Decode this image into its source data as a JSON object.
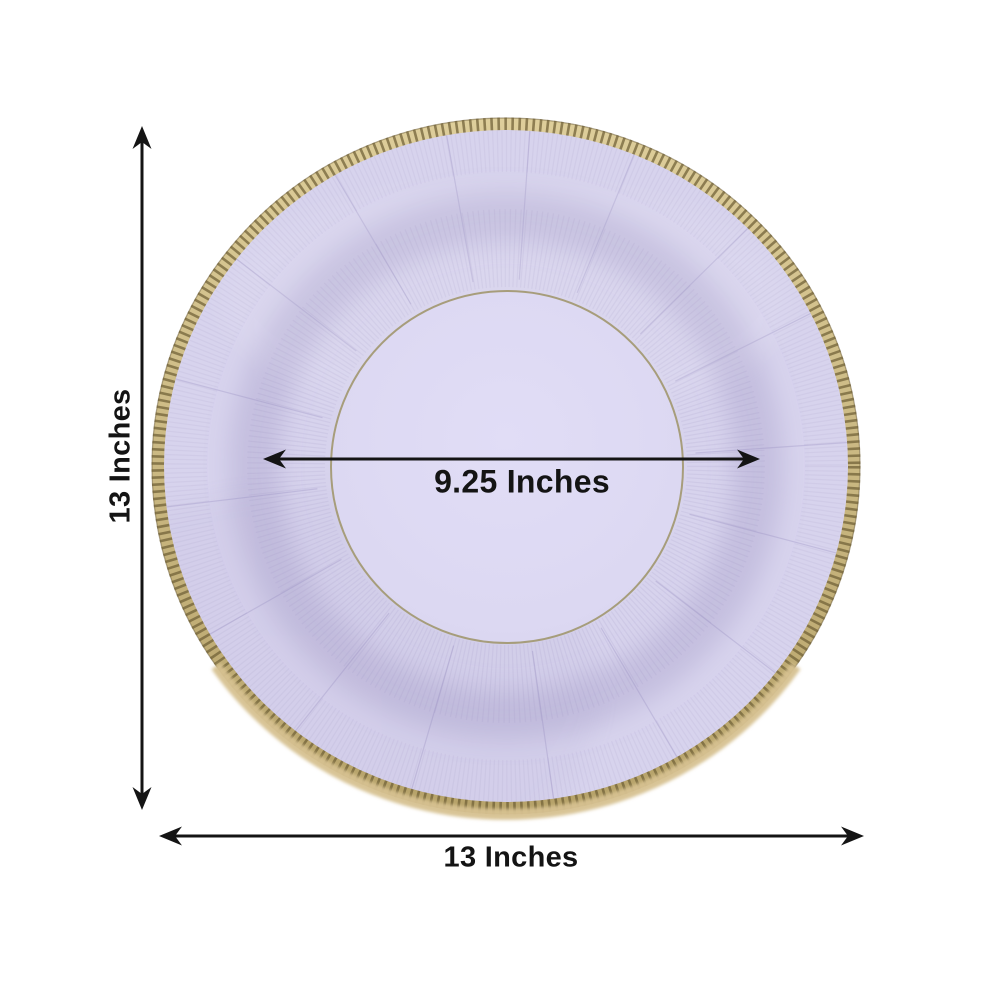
{
  "annotations": {
    "height_label": "13 Inches",
    "width_label": "13 Inches",
    "inner_diameter_label": "9.25 Inches"
  },
  "colors": {
    "background": "#ffffff",
    "arrow": "#141414",
    "label_text": "#141414",
    "plate_lavender": "#d7d3ed",
    "plate_well_center": "#e1ddf6",
    "plate_well_mid": "#dcd8f2",
    "plate_well_edge": "#d6d2ec",
    "plate_shadow": "#9289bc",
    "gold_light": "#dece9b",
    "gold_base": "#bfa970",
    "gold_dark": "#6f5f36",
    "gold_soft_edge": "#d6c190",
    "gold_ring_line": "#a39a74"
  }
}
